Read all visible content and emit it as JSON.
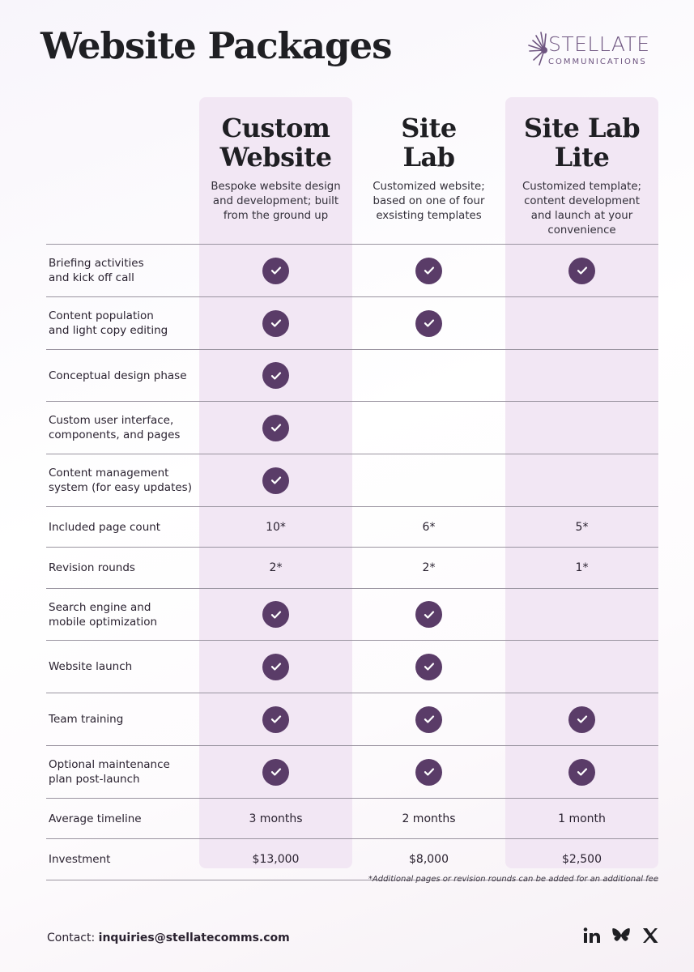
{
  "header": {
    "title": "Website Packages",
    "logo": {
      "main": "STELLATE",
      "sub": "COMMUNICATIONS",
      "icon": "starburst-icon"
    }
  },
  "plans": [
    {
      "name": "Custom\nWebsite",
      "description": "Bespoke website design\nand development; built\nfrom the ground up",
      "highlighted": true
    },
    {
      "name": "Site\nLab",
      "description": "Customized website;\nbased on one of four\nexsisting templates",
      "highlighted": false
    },
    {
      "name": "Site Lab\nLite",
      "description": "Customized template;\ncontent development\nand launch at your\nconvenience",
      "highlighted": true
    }
  ],
  "features": [
    {
      "label": "Briefing activities\nand kick off call",
      "values": [
        "check",
        "check",
        "check"
      ]
    },
    {
      "label": "Content population\nand light copy editing",
      "values": [
        "check",
        "check",
        ""
      ]
    },
    {
      "label": "Conceptual design phase",
      "values": [
        "check",
        "",
        ""
      ]
    },
    {
      "label": "Custom user interface,\ncomponents, and pages",
      "values": [
        "check",
        "",
        ""
      ]
    },
    {
      "label": "Content management\nsystem  (for easy updates)",
      "values": [
        "check",
        "",
        ""
      ]
    },
    {
      "label": "Included page count",
      "values": [
        "10*",
        "6*",
        "5*"
      ]
    },
    {
      "label": "Revision rounds",
      "values": [
        "2*",
        "2*",
        "1*"
      ]
    },
    {
      "label": "Search engine and\nmobile optimization",
      "values": [
        "check",
        "check",
        ""
      ]
    },
    {
      "label": "Website launch",
      "values": [
        "check",
        "check",
        ""
      ]
    },
    {
      "label": "Team training",
      "values": [
        "check",
        "check",
        "check"
      ]
    },
    {
      "label": "Optional maintenance\nplan post-launch",
      "values": [
        "check",
        "check",
        "check"
      ]
    },
    {
      "label": "Average timeline",
      "values": [
        "3 months",
        "2 months",
        "1 month"
      ]
    },
    {
      "label": "Investment",
      "values": [
        "$13,000",
        "$8,000",
        "$2,500"
      ]
    }
  ],
  "footnote": "*Additional pages or revision rounds can be added for an additional fee",
  "footer": {
    "contact_label": "Contact:",
    "contact_email": "inquiries@stellatecomms.com",
    "social": [
      "linkedin-icon",
      "butterfly-icon",
      "x-icon"
    ]
  },
  "colors": {
    "accent": "#5a3c68",
    "column_highlight": "#f2e7f4",
    "logo": "#6e5580"
  }
}
